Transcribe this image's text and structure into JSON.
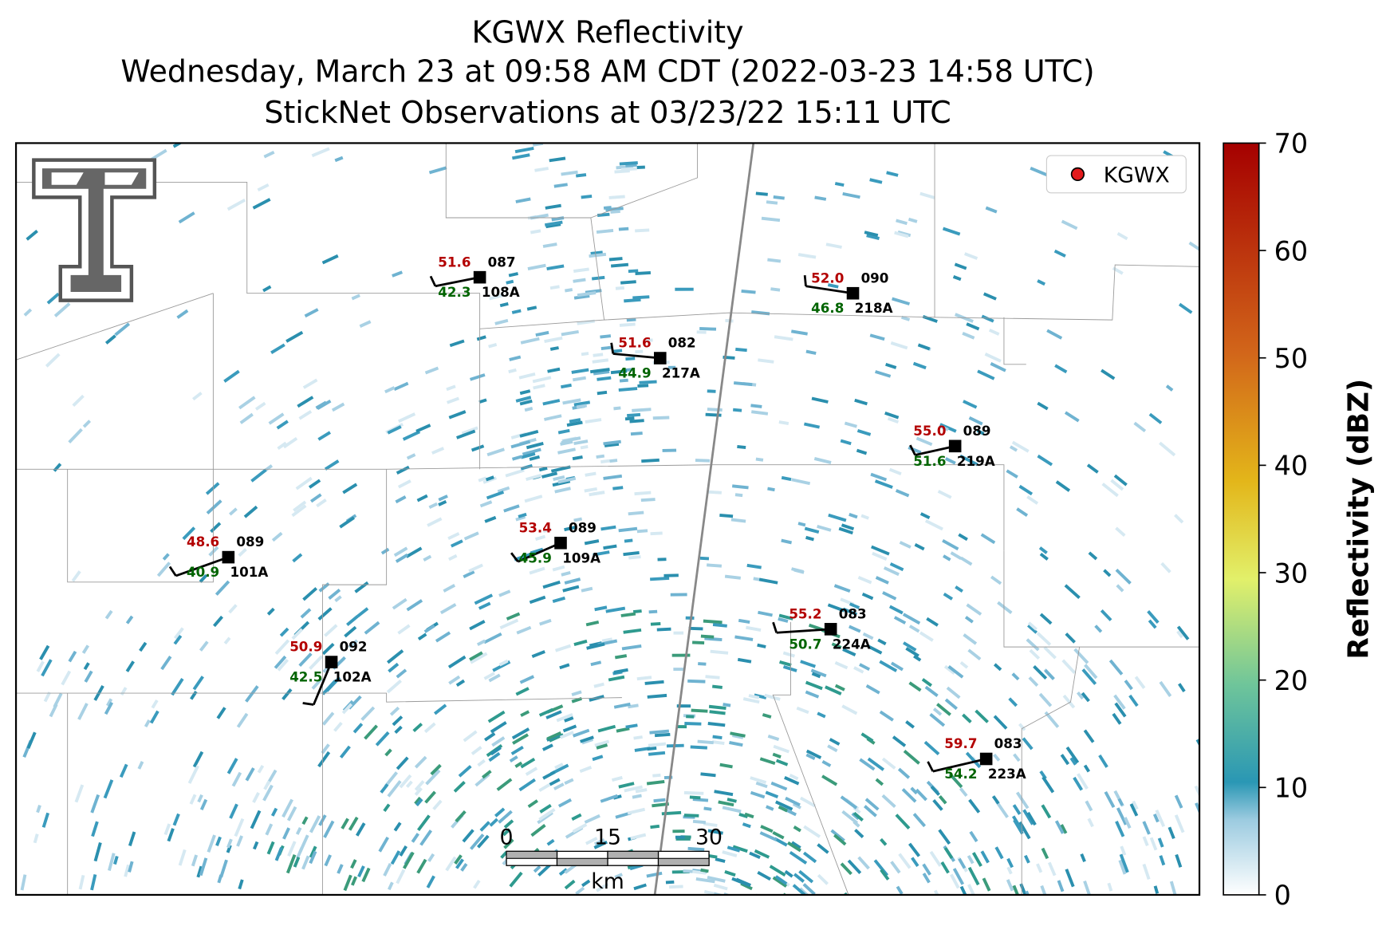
{
  "header": {
    "title": "KGWX Reflectivity",
    "subtitle": "Wednesday, March 23 at 09:58 AM CDT (2022-03-23 14:58 UTC)",
    "observations": "StickNet Observations at 03/23/22 15:11 UTC"
  },
  "legend": {
    "label": "KGWX",
    "color": "#e31a1c"
  },
  "colorbar": {
    "label": "Reflectivity (dBZ)",
    "lim": [
      0,
      70
    ],
    "ticks": [
      0,
      10,
      20,
      30,
      40,
      50,
      60,
      70
    ]
  },
  "scale_bar": {
    "lim": [
      0,
      30
    ],
    "ticks": [
      0,
      15,
      30
    ],
    "unit": "km"
  },
  "stations": [
    {
      "id": "108A",
      "temperature": "51.6",
      "dewpoint": "42.3",
      "pressure": "087"
    },
    {
      "id": "218A",
      "temperature": "52.0",
      "dewpoint": "46.8",
      "pressure": "090"
    },
    {
      "id": "217A",
      "temperature": "51.6",
      "dewpoint": "44.9",
      "pressure": "082"
    },
    {
      "id": "219A",
      "temperature": "55.0",
      "dewpoint": "51.6",
      "pressure": "089"
    },
    {
      "id": "109A",
      "temperature": "53.4",
      "dewpoint": "45.9",
      "pressure": "089"
    },
    {
      "id": "101A",
      "temperature": "48.6",
      "dewpoint": "40.9",
      "pressure": "089"
    },
    {
      "id": "224A",
      "temperature": "55.2",
      "dewpoint": "50.7",
      "pressure": "083"
    },
    {
      "id": "102A",
      "temperature": "50.9",
      "dewpoint": "42.5",
      "pressure": "092"
    },
    {
      "id": "223A",
      "temperature": "59.7",
      "dewpoint": "54.2",
      "pressure": "083"
    }
  ]
}
